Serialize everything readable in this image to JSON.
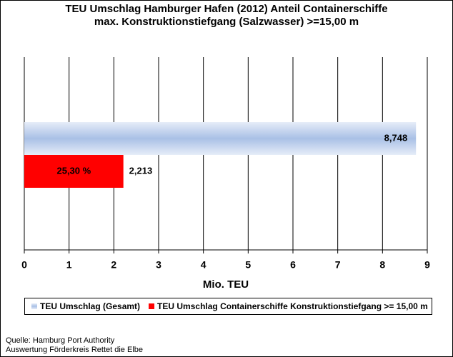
{
  "chart_data": {
    "type": "hbar",
    "title": [
      "TEU Umschlag Hamburger Hafen (2012) Anteil Containerschiffe",
      "max. Konstruktionstiefgang (Salzwasser) >=15,00  m"
    ],
    "categories": [
      null
    ],
    "series": [
      {
        "name": "TEU Umschlag (Gesamt)",
        "color": "#a9c0e6",
        "values": [
          8.748
        ],
        "value_labels": [
          "8,748"
        ]
      },
      {
        "name": "TEU Umschlag Containerschiffe Konstruktionstiefgang >= 15,00 m",
        "color": "#ff0000",
        "values": [
          2.213
        ],
        "value_labels": [
          "2,213"
        ]
      }
    ],
    "annotations": [
      "25,30 %"
    ],
    "x_label": "Mio. TEU",
    "xlim": [
      0,
      9
    ],
    "xticks": [
      0,
      1,
      2,
      3,
      4,
      5,
      6,
      7,
      8,
      9
    ],
    "grid": true,
    "legend": "bottom",
    "source": [
      "Quelle: Hamburg Port Authority",
      "Auswertung Förderkreis Rettet die Elbe"
    ]
  }
}
